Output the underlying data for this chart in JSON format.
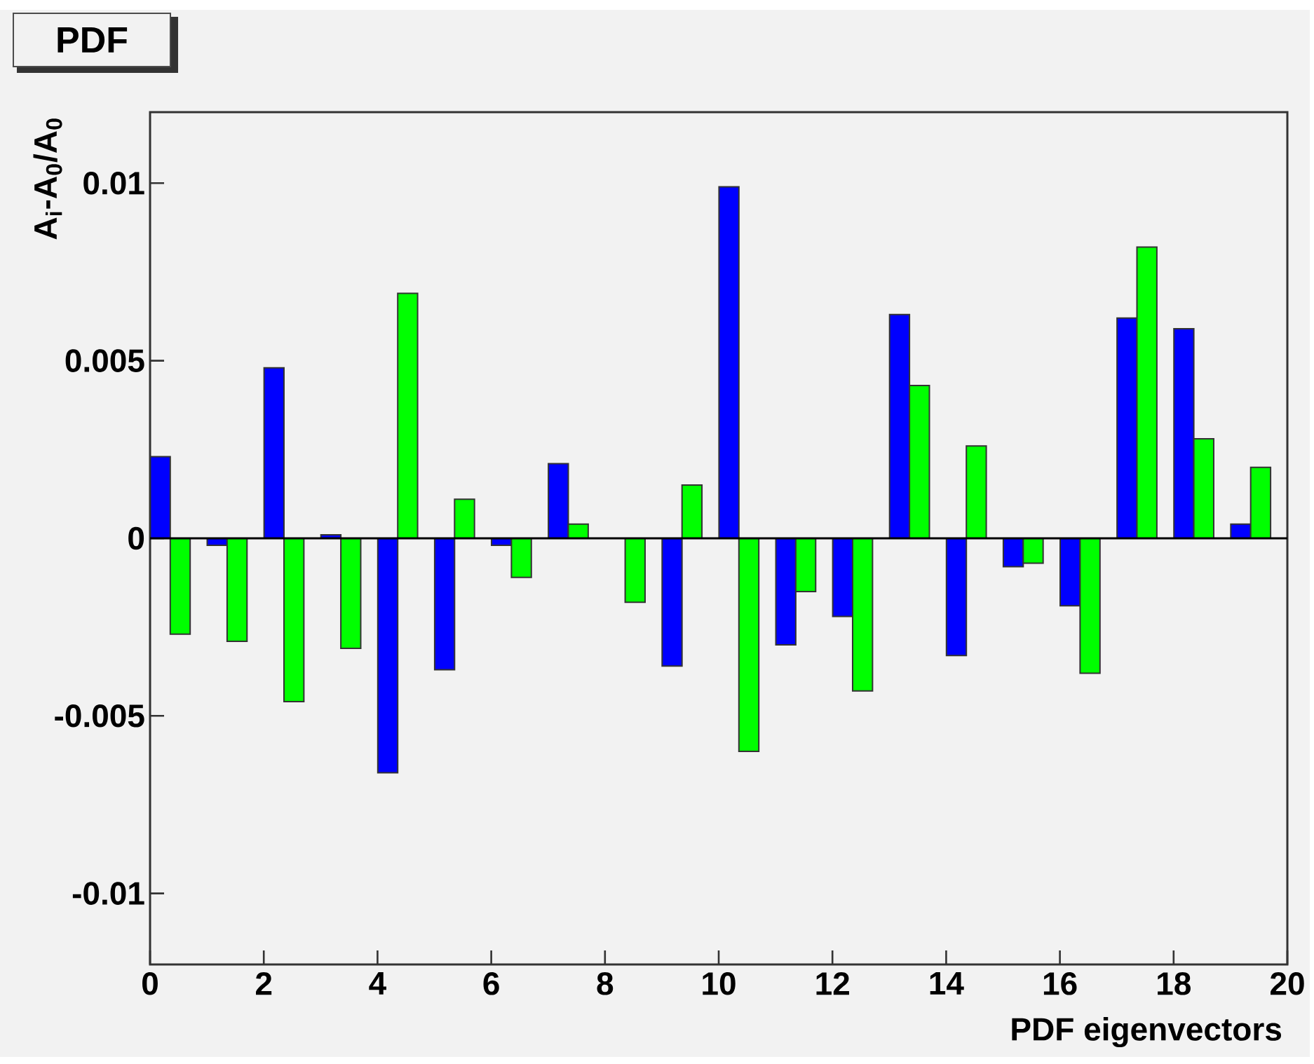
{
  "chart_data": {
    "type": "bar",
    "title": "PDF",
    "xlabel": "PDF eigenvectors",
    "ylabel": "A$_{i}$-A$_{0}$/A$_{0}$",
    "series": [
      {
        "color": "#0000ff",
        "x": [
          0.18,
          1.18,
          2.18,
          3.18,
          4.18,
          5.18,
          6.18,
          7.18,
          8.18,
          9.18,
          10.18,
          11.18,
          12.18,
          13.18,
          14.18,
          15.18,
          16.18,
          17.18,
          18.18,
          19.18
        ],
        "values": [
          0.0023,
          -0.0002,
          0.0048,
          0.0001,
          -0.0066,
          -0.0037,
          -0.0002,
          0.0021,
          null,
          -0.0036,
          0.0099,
          -0.003,
          -0.0022,
          0.0063,
          -0.0033,
          -0.0008,
          -0.0019,
          0.0062,
          0.0059,
          0.0004
        ]
      },
      {
        "color": "#00ff00",
        "x": [
          0.53,
          1.53,
          2.53,
          3.53,
          4.53,
          5.53,
          6.53,
          7.53,
          8.53,
          9.53,
          10.53,
          11.53,
          12.53,
          13.53,
          14.53,
          15.53,
          16.53,
          17.53,
          18.53,
          19.53
        ],
        "values": [
          -0.0027,
          -0.0029,
          -0.0046,
          -0.0031,
          0.0069,
          0.0011,
          -0.0011,
          0.0004,
          -0.0018,
          0.0015,
          -0.006,
          -0.0015,
          -0.0043,
          0.0043,
          0.0026,
          -0.0007,
          -0.0038,
          0.0082,
          0.0028,
          0.002
        ]
      }
    ],
    "xlim": [
      0,
      20
    ],
    "ylim": [
      -0.012,
      0.012
    ],
    "xticks": [
      0,
      2,
      4,
      6,
      8,
      10,
      12,
      14,
      16,
      18,
      20
    ],
    "yticks": [
      -0.01,
      -0.005,
      0,
      0.005,
      0.01
    ],
    "ref_lines": [
      {
        "axis": "y",
        "value": 0,
        "color": "#000000"
      }
    ]
  }
}
